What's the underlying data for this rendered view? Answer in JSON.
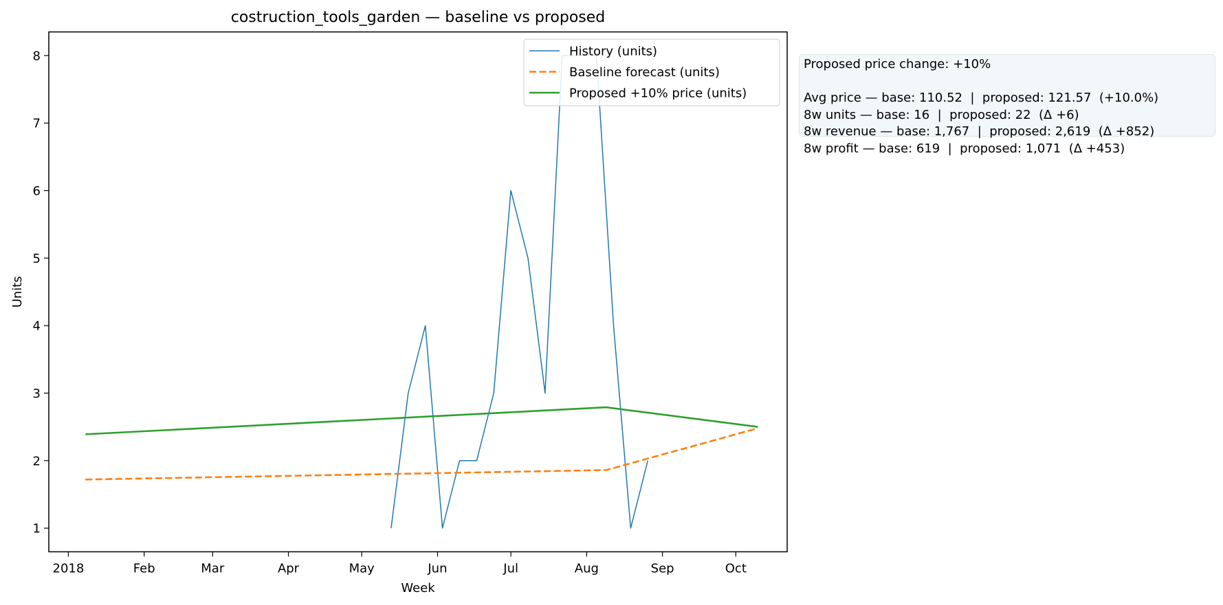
{
  "chart_data": {
    "type": "line",
    "title": "costruction_tools_garden — baseline vs proposed",
    "xlabel": "Week",
    "ylabel": "Units",
    "x_axis": {
      "type": "date",
      "range": [
        "2017-12-24",
        "2018-10-22"
      ],
      "ticks": [
        {
          "date": "2018-01-01",
          "label": "2018"
        },
        {
          "date": "2018-02-01",
          "label": "Feb"
        },
        {
          "date": "2018-03-01",
          "label": "Mar"
        },
        {
          "date": "2018-04-01",
          "label": "Apr"
        },
        {
          "date": "2018-05-01",
          "label": "May"
        },
        {
          "date": "2018-06-01",
          "label": "Jun"
        },
        {
          "date": "2018-07-01",
          "label": "Jul"
        },
        {
          "date": "2018-08-01",
          "label": "Aug"
        },
        {
          "date": "2018-09-01",
          "label": "Sep"
        },
        {
          "date": "2018-10-01",
          "label": "Oct"
        }
      ]
    },
    "y_axis": {
      "range": [
        0.65,
        8.35
      ],
      "ticks": [
        1,
        2,
        3,
        4,
        5,
        6,
        7,
        8
      ]
    },
    "grid": false,
    "legend_placement": "upper-right",
    "series": [
      {
        "name": "History (units)",
        "color": "#1f77b4",
        "style": "solid",
        "points": [
          {
            "x": "2018-05-13",
            "y": 1
          },
          {
            "x": "2018-05-20",
            "y": 3
          },
          {
            "x": "2018-05-27",
            "y": 4
          },
          {
            "x": "2018-06-03",
            "y": 1
          },
          {
            "x": "2018-06-10",
            "y": 2
          },
          {
            "x": "2018-06-17",
            "y": 2
          },
          {
            "x": "2018-06-24",
            "y": 3
          },
          {
            "x": "2018-07-01",
            "y": 6
          },
          {
            "x": "2018-07-08",
            "y": 5
          },
          {
            "x": "2018-07-15",
            "y": 3
          },
          {
            "x": "2018-07-22",
            "y": 8
          },
          {
            "x": "2018-07-29",
            "y": 8
          },
          {
            "x": "2018-08-05",
            "y": 8
          },
          {
            "x": "2018-08-12",
            "y": 4
          },
          {
            "x": "2018-08-19",
            "y": 1
          },
          {
            "x": "2018-08-26",
            "y": 2
          }
        ]
      },
      {
        "name": "Baseline forecast (units)",
        "color": "#ff7f0e",
        "style": "dashed",
        "points": [
          {
            "x": "2018-01-08",
            "y": 1.72
          },
          {
            "x": "2018-08-09",
            "y": 1.86
          },
          {
            "x": "2018-10-10",
            "y": 2.48
          }
        ]
      },
      {
        "name": "Proposed +10% price (units)",
        "color": "#2ca02c",
        "style": "solid",
        "points": [
          {
            "x": "2018-01-08",
            "y": 2.39
          },
          {
            "x": "2018-08-09",
            "y": 2.79
          },
          {
            "x": "2018-10-10",
            "y": 2.5
          }
        ]
      }
    ],
    "annotation": {
      "line1": "Proposed price change: +10%",
      "line2": "Avg price — base: 110.52  |  proposed: 121.57  (+10.0%)",
      "line3": "8w units — base: 16  |  proposed: 22  (Δ +6)",
      "line4": "8w revenue — base: 1,767  |  proposed: 2,619  (Δ +852)",
      "line5": "8w profit — base: 619  |  proposed: 1,071  (Δ +453)"
    }
  }
}
